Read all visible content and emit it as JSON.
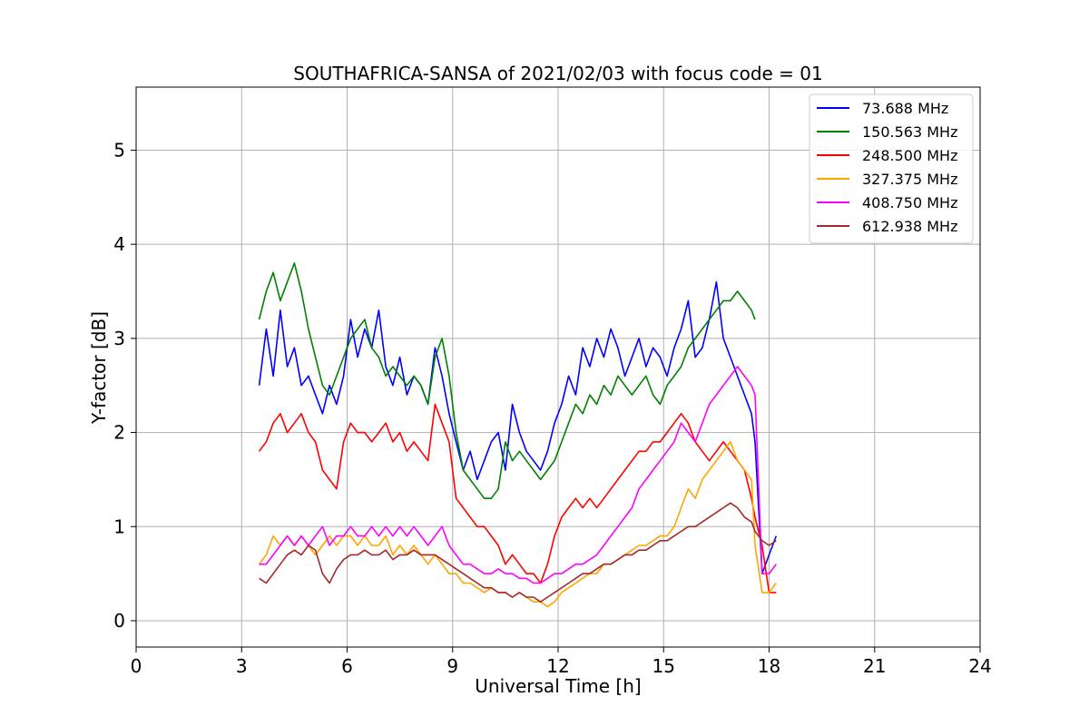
{
  "chart_data": {
    "type": "line",
    "title": "SOUTHAFRICA-SANSA of 2021/02/03 with focus code = 01",
    "xlabel": "Universal Time [h]",
    "ylabel": "Y-factor [dB]",
    "xlim": [
      0,
      24
    ],
    "ylim": [
      -0.28,
      5.67
    ],
    "xticks": [
      0,
      3,
      6,
      9,
      12,
      15,
      18,
      21,
      24
    ],
    "yticks": [
      0,
      1,
      2,
      3,
      4,
      5
    ],
    "grid": true,
    "legend_position": "top-right",
    "series": [
      {
        "name": " 73.688 MHz",
        "color": "#0000ff",
        "x": [
          3.5,
          3.7,
          3.9,
          4.1,
          4.3,
          4.5,
          4.7,
          4.9,
          5.1,
          5.3,
          5.5,
          5.7,
          5.9,
          6.1,
          6.3,
          6.5,
          6.7,
          6.9,
          7.1,
          7.3,
          7.5,
          7.7,
          7.9,
          8.1,
          8.3,
          8.5,
          8.7,
          8.9,
          9.1,
          9.3,
          9.5,
          9.7,
          9.9,
          10.1,
          10.3,
          10.5,
          10.7,
          10.9,
          11.1,
          11.3,
          11.5,
          11.7,
          11.9,
          12.1,
          12.3,
          12.5,
          12.7,
          12.9,
          13.1,
          13.3,
          13.5,
          13.7,
          13.9,
          14.1,
          14.3,
          14.5,
          14.7,
          14.9,
          15.1,
          15.3,
          15.5,
          15.7,
          15.9,
          16.1,
          16.3,
          16.5,
          16.7,
          16.9,
          17.1,
          17.3,
          17.5,
          17.6,
          17.8,
          18.0,
          18.2
        ],
        "y": [
          2.5,
          3.1,
          2.6,
          3.3,
          2.7,
          2.9,
          2.5,
          2.6,
          2.4,
          2.2,
          2.5,
          2.3,
          2.6,
          3.2,
          2.8,
          3.1,
          2.9,
          3.3,
          2.7,
          2.5,
          2.8,
          2.4,
          2.6,
          2.5,
          2.3,
          2.9,
          2.6,
          2.2,
          1.9,
          1.6,
          1.8,
          1.5,
          1.7,
          1.9,
          2.0,
          1.6,
          2.3,
          2.0,
          1.8,
          1.7,
          1.6,
          1.8,
          2.1,
          2.3,
          2.6,
          2.4,
          2.9,
          2.7,
          3.0,
          2.8,
          3.1,
          2.9,
          2.6,
          2.8,
          3.0,
          2.7,
          2.9,
          2.8,
          2.6,
          2.9,
          3.1,
          3.4,
          2.8,
          2.9,
          3.2,
          3.6,
          3.0,
          2.8,
          2.6,
          2.4,
          2.2,
          1.9,
          0.5,
          0.7,
          0.9
        ]
      },
      {
        "name": "150.563 MHz",
        "color": "#008000",
        "x": [
          3.5,
          3.7,
          3.9,
          4.1,
          4.3,
          4.5,
          4.7,
          4.9,
          5.1,
          5.3,
          5.5,
          5.7,
          5.9,
          6.1,
          6.3,
          6.5,
          6.7,
          6.9,
          7.1,
          7.3,
          7.5,
          7.7,
          7.9,
          8.1,
          8.3,
          8.5,
          8.7,
          8.9,
          9.1,
          9.3,
          9.5,
          9.7,
          9.9,
          10.1,
          10.3,
          10.5,
          10.7,
          10.9,
          11.1,
          11.3,
          11.5,
          11.7,
          11.9,
          12.1,
          12.3,
          12.5,
          12.7,
          12.9,
          13.1,
          13.3,
          13.5,
          13.7,
          13.9,
          14.1,
          14.3,
          14.5,
          14.7,
          14.9,
          15.1,
          15.3,
          15.5,
          15.7,
          15.9,
          16.1,
          16.3,
          16.5,
          16.7,
          16.9,
          17.1,
          17.3,
          17.5,
          17.6
        ],
        "y": [
          3.2,
          3.5,
          3.7,
          3.4,
          3.6,
          3.8,
          3.5,
          3.1,
          2.8,
          2.5,
          2.4,
          2.6,
          2.8,
          3.0,
          3.1,
          3.2,
          2.9,
          2.8,
          2.6,
          2.7,
          2.6,
          2.5,
          2.6,
          2.5,
          2.3,
          2.8,
          3.0,
          2.6,
          2.0,
          1.6,
          1.5,
          1.4,
          1.3,
          1.3,
          1.4,
          1.9,
          1.7,
          1.8,
          1.7,
          1.6,
          1.5,
          1.6,
          1.7,
          1.9,
          2.1,
          2.3,
          2.2,
          2.4,
          2.3,
          2.5,
          2.4,
          2.6,
          2.5,
          2.4,
          2.5,
          2.6,
          2.4,
          2.3,
          2.5,
          2.6,
          2.7,
          2.9,
          3.0,
          3.1,
          3.2,
          3.3,
          3.4,
          3.4,
          3.5,
          3.4,
          3.3,
          3.2
        ]
      },
      {
        "name": "248.500 MHz",
        "color": "#ff0000",
        "x": [
          3.5,
          3.7,
          3.9,
          4.1,
          4.3,
          4.5,
          4.7,
          4.9,
          5.1,
          5.3,
          5.5,
          5.7,
          5.9,
          6.1,
          6.3,
          6.5,
          6.7,
          6.9,
          7.1,
          7.3,
          7.5,
          7.7,
          7.9,
          8.1,
          8.3,
          8.5,
          8.7,
          8.9,
          9.1,
          9.3,
          9.5,
          9.7,
          9.9,
          10.1,
          10.3,
          10.5,
          10.7,
          10.9,
          11.1,
          11.3,
          11.5,
          11.7,
          11.9,
          12.1,
          12.3,
          12.5,
          12.7,
          12.9,
          13.1,
          13.3,
          13.5,
          13.7,
          13.9,
          14.1,
          14.3,
          14.5,
          14.7,
          14.9,
          15.1,
          15.3,
          15.5,
          15.7,
          15.9,
          16.1,
          16.3,
          16.5,
          16.7,
          16.9,
          17.1,
          17.3,
          17.5,
          17.6,
          17.8,
          18.0,
          18.2
        ],
        "y": [
          1.8,
          1.9,
          2.1,
          2.2,
          2.0,
          2.1,
          2.2,
          2.0,
          1.9,
          1.6,
          1.5,
          1.4,
          1.9,
          2.1,
          2.0,
          2.0,
          1.9,
          2.0,
          2.1,
          1.9,
          2.0,
          1.8,
          1.9,
          1.8,
          1.7,
          2.3,
          2.1,
          1.9,
          1.3,
          1.2,
          1.1,
          1.0,
          1.0,
          0.9,
          0.8,
          0.6,
          0.7,
          0.6,
          0.5,
          0.5,
          0.4,
          0.6,
          0.9,
          1.1,
          1.2,
          1.3,
          1.2,
          1.3,
          1.2,
          1.3,
          1.4,
          1.5,
          1.6,
          1.7,
          1.8,
          1.8,
          1.9,
          1.9,
          2.0,
          2.1,
          2.2,
          2.1,
          1.9,
          1.8,
          1.7,
          1.8,
          1.9,
          1.8,
          1.7,
          1.6,
          1.3,
          1.1,
          0.8,
          0.3,
          0.3
        ]
      },
      {
        "name": "327.375 MHz",
        "color": "#ffa500",
        "x": [
          3.5,
          3.7,
          3.9,
          4.1,
          4.3,
          4.5,
          4.7,
          4.9,
          5.1,
          5.3,
          5.5,
          5.7,
          5.9,
          6.1,
          6.3,
          6.5,
          6.7,
          6.9,
          7.1,
          7.3,
          7.5,
          7.7,
          7.9,
          8.1,
          8.3,
          8.5,
          8.7,
          8.9,
          9.1,
          9.3,
          9.5,
          9.7,
          9.9,
          10.1,
          10.3,
          10.5,
          10.7,
          10.9,
          11.1,
          11.3,
          11.5,
          11.7,
          11.9,
          12.1,
          12.3,
          12.5,
          12.7,
          12.9,
          13.1,
          13.3,
          13.5,
          13.7,
          13.9,
          14.1,
          14.3,
          14.5,
          14.7,
          14.9,
          15.1,
          15.3,
          15.5,
          15.7,
          15.9,
          16.1,
          16.3,
          16.5,
          16.7,
          16.9,
          17.1,
          17.3,
          17.5,
          17.6,
          17.8,
          18.0,
          18.2
        ],
        "y": [
          0.6,
          0.7,
          0.9,
          0.8,
          0.9,
          0.8,
          0.9,
          0.8,
          0.7,
          0.8,
          0.9,
          0.8,
          0.9,
          0.9,
          0.8,
          0.9,
          0.8,
          0.8,
          0.9,
          0.7,
          0.8,
          0.7,
          0.8,
          0.7,
          0.6,
          0.7,
          0.6,
          0.5,
          0.5,
          0.4,
          0.4,
          0.35,
          0.3,
          0.35,
          0.3,
          0.3,
          0.25,
          0.3,
          0.25,
          0.2,
          0.2,
          0.15,
          0.2,
          0.3,
          0.35,
          0.4,
          0.45,
          0.5,
          0.5,
          0.6,
          0.6,
          0.65,
          0.7,
          0.75,
          0.8,
          0.8,
          0.85,
          0.9,
          0.9,
          1.0,
          1.2,
          1.4,
          1.3,
          1.5,
          1.6,
          1.7,
          1.8,
          1.9,
          1.7,
          1.6,
          1.5,
          0.8,
          0.3,
          0.3,
          0.4
        ]
      },
      {
        "name": "408.750 MHz",
        "color": "#ff00ff",
        "x": [
          3.5,
          3.7,
          3.9,
          4.1,
          4.3,
          4.5,
          4.7,
          4.9,
          5.1,
          5.3,
          5.5,
          5.7,
          5.9,
          6.1,
          6.3,
          6.5,
          6.7,
          6.9,
          7.1,
          7.3,
          7.5,
          7.7,
          7.9,
          8.1,
          8.3,
          8.5,
          8.7,
          8.9,
          9.1,
          9.3,
          9.5,
          9.7,
          9.9,
          10.1,
          10.3,
          10.5,
          10.7,
          10.9,
          11.1,
          11.3,
          11.5,
          11.7,
          11.9,
          12.1,
          12.3,
          12.5,
          12.7,
          12.9,
          13.1,
          13.3,
          13.5,
          13.7,
          13.9,
          14.1,
          14.3,
          14.5,
          14.7,
          14.9,
          15.1,
          15.3,
          15.5,
          15.7,
          15.9,
          16.1,
          16.3,
          16.5,
          16.7,
          16.9,
          17.1,
          17.3,
          17.5,
          17.6,
          17.8,
          18.0,
          18.2
        ],
        "y": [
          0.6,
          0.6,
          0.7,
          0.8,
          0.9,
          0.8,
          0.9,
          0.8,
          0.9,
          1.0,
          0.8,
          0.9,
          0.9,
          1.0,
          0.9,
          0.9,
          1.0,
          0.9,
          1.0,
          0.9,
          1.0,
          0.9,
          1.0,
          0.9,
          0.8,
          0.9,
          1.0,
          0.8,
          0.7,
          0.6,
          0.6,
          0.55,
          0.5,
          0.5,
          0.55,
          0.5,
          0.5,
          0.45,
          0.45,
          0.4,
          0.4,
          0.45,
          0.5,
          0.5,
          0.55,
          0.6,
          0.6,
          0.65,
          0.7,
          0.8,
          0.9,
          1.0,
          1.1,
          1.2,
          1.4,
          1.5,
          1.6,
          1.7,
          1.8,
          1.9,
          2.1,
          2.0,
          1.9,
          2.1,
          2.3,
          2.4,
          2.5,
          2.6,
          2.7,
          2.6,
          2.5,
          2.4,
          0.5,
          0.5,
          0.6
        ]
      },
      {
        "name": "612.938 MHz",
        "color": "#a52a2a",
        "x": [
          3.5,
          3.7,
          3.9,
          4.1,
          4.3,
          4.5,
          4.7,
          4.9,
          5.1,
          5.3,
          5.5,
          5.7,
          5.9,
          6.1,
          6.3,
          6.5,
          6.7,
          6.9,
          7.1,
          7.3,
          7.5,
          7.7,
          7.9,
          8.1,
          8.3,
          8.5,
          8.7,
          8.9,
          9.1,
          9.3,
          9.5,
          9.7,
          9.9,
          10.1,
          10.3,
          10.5,
          10.7,
          10.9,
          11.1,
          11.3,
          11.5,
          11.7,
          11.9,
          12.1,
          12.3,
          12.5,
          12.7,
          12.9,
          13.1,
          13.3,
          13.5,
          13.7,
          13.9,
          14.1,
          14.3,
          14.5,
          14.7,
          14.9,
          15.1,
          15.3,
          15.5,
          15.7,
          15.9,
          16.1,
          16.3,
          16.5,
          16.7,
          16.9,
          17.1,
          17.3,
          17.5,
          17.6,
          17.8,
          18.0,
          18.2
        ],
        "y": [
          0.45,
          0.4,
          0.5,
          0.6,
          0.7,
          0.75,
          0.7,
          0.8,
          0.75,
          0.5,
          0.4,
          0.55,
          0.65,
          0.7,
          0.7,
          0.75,
          0.7,
          0.7,
          0.75,
          0.65,
          0.7,
          0.7,
          0.75,
          0.7,
          0.7,
          0.7,
          0.65,
          0.6,
          0.55,
          0.5,
          0.45,
          0.4,
          0.35,
          0.35,
          0.3,
          0.3,
          0.25,
          0.3,
          0.25,
          0.25,
          0.2,
          0.25,
          0.3,
          0.35,
          0.4,
          0.45,
          0.5,
          0.5,
          0.55,
          0.6,
          0.6,
          0.65,
          0.7,
          0.7,
          0.75,
          0.75,
          0.8,
          0.85,
          0.85,
          0.9,
          0.95,
          1.0,
          1.0,
          1.05,
          1.1,
          1.15,
          1.2,
          1.25,
          1.2,
          1.1,
          1.05,
          0.95,
          0.85,
          0.8,
          0.85
        ]
      }
    ]
  }
}
